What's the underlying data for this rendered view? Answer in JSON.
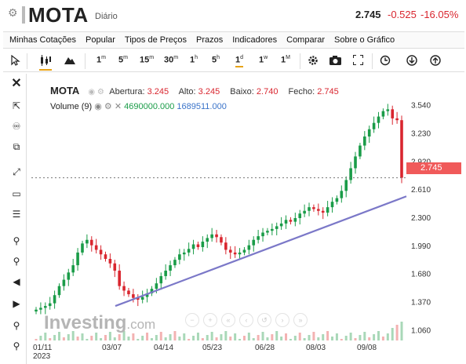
{
  "header": {
    "symbol": "MOTA",
    "timeframe": "Diário",
    "price": "2.745",
    "change": "-0.525",
    "change_pct": "-16.05%",
    "down_color": "#d9262f"
  },
  "menu": [
    "Minhas Cotações",
    "Popular",
    "Tipos de Preços",
    "Prazos",
    "Indicadores",
    "Comparar",
    "Sobre o Gráfico"
  ],
  "toolbar": {
    "intervals": [
      {
        "n": "1",
        "u": "m"
      },
      {
        "n": "5",
        "u": "m"
      },
      {
        "n": "15",
        "u": "m"
      },
      {
        "n": "30",
        "u": "m"
      },
      {
        "n": "1",
        "u": "h"
      },
      {
        "n": "5",
        "u": "h"
      },
      {
        "n": "1",
        "u": "d"
      },
      {
        "n": "1",
        "u": "w"
      },
      {
        "n": "1",
        "u": "M"
      }
    ],
    "selected_interval": "1d",
    "icons": [
      "cursor-icon",
      "candlestick-icon",
      "mountain-icon",
      "gear-icon",
      "camera-icon",
      "fullscreen-icon",
      "history-icon",
      "download-icon",
      "upload-icon"
    ]
  },
  "left_tools": [
    "close-icon",
    "cursor-cross-icon",
    "crosshair-icon",
    "clone-icon",
    "line-tool-icon",
    "rectangle-tool-icon",
    "fib-tool-icon",
    "zoom-in-icon",
    "zoom-out-icon",
    "scroll-left-icon",
    "scroll-right-icon",
    "magnet-icon",
    "crosshair-magnet-icon"
  ],
  "legend": {
    "name": "MOTA",
    "open_label": "Abertura:",
    "open": "3.245",
    "high_label": "Alto:",
    "high": "3.245",
    "low_label": "Baixo:",
    "low": "2.740",
    "close_label": "Fecho:",
    "close": "2.745",
    "volume_label": "Volume (9)",
    "volume": "4690000.000",
    "volume_ma": "1689511.000"
  },
  "watermark": {
    "brand": "Investing",
    "suffix": ".com"
  },
  "last_price_label": "2.745",
  "chart_data": {
    "type": "candlestick",
    "symbol": "MOTA",
    "y_ticks": [
      3.54,
      3.23,
      2.92,
      2.61,
      2.3,
      1.99,
      1.68,
      1.37,
      1.06
    ],
    "y_tick_labels": [
      "3.540",
      "3.230",
      "2.920",
      "2.610",
      "2.300",
      "1.990",
      "1.680",
      "1.370",
      "1.060"
    ],
    "x_tick_labels": [
      "01/11\n2023",
      "03/07",
      "04/14",
      "05/23",
      "06/28",
      "08/03",
      "09/08"
    ],
    "last_price": 2.745,
    "trendline": {
      "start": {
        "date": "02/28",
        "price": 1.33
      },
      "end": {
        "date": "09/28",
        "price": 2.54
      },
      "color": "#7b78c8"
    },
    "series_close": [
      1.29,
      1.31,
      1.33,
      1.36,
      1.45,
      1.55,
      1.62,
      1.7,
      1.78,
      1.92,
      2.02,
      2.06,
      2.0,
      1.95,
      1.9,
      1.85,
      1.8,
      1.72,
      1.55,
      1.5,
      1.46,
      1.42,
      1.4,
      1.43,
      1.47,
      1.52,
      1.58,
      1.66,
      1.72,
      1.78,
      1.84,
      1.9,
      1.92,
      1.96,
      2.01,
      1.98,
      2.04,
      2.08,
      2.12,
      2.09,
      2.03,
      1.95,
      1.92,
      1.9,
      1.92,
      1.95,
      2.0,
      2.06,
      2.1,
      2.14,
      2.16,
      2.18,
      2.21,
      2.24,
      2.28,
      2.26,
      2.3,
      2.35,
      2.38,
      2.42,
      2.4,
      2.38,
      2.36,
      2.42,
      2.48,
      2.52,
      2.6,
      2.72,
      2.85,
      2.98,
      3.1,
      3.2,
      3.28,
      3.35,
      3.42,
      3.48,
      3.5,
      3.4,
      3.38,
      2.745
    ],
    "bull_color": "#1a9c48",
    "bear_color": "#d9262f"
  }
}
